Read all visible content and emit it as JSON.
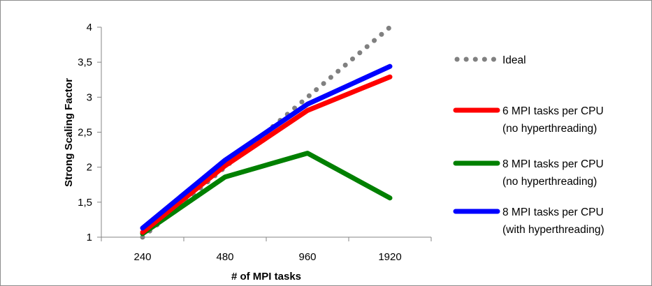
{
  "chart_data": {
    "type": "line",
    "title": "",
    "xlabel": "# of MPI tasks",
    "ylabel": "Strong Scaling Factor",
    "categories": [
      "240",
      "480",
      "960",
      "1920"
    ],
    "y_ticks": [
      "1",
      "1,5",
      "2",
      "2,5",
      "3",
      "3,5",
      "4"
    ],
    "ylim": [
      1,
      4
    ],
    "grid": false,
    "legend_position": "right",
    "series": [
      {
        "name": "Ideal",
        "values": [
          1,
          2,
          3,
          4
        ],
        "color": "#808080",
        "style": "dotted"
      },
      {
        "name": "6 MPI tasks per CPU",
        "name_line2": "(no hyperthreading)",
        "values": [
          1.07,
          2.02,
          2.81,
          3.29
        ],
        "color": "#ff0000",
        "style": "solid"
      },
      {
        "name": "8 MPI tasks per CPU",
        "name_line2": "(no hyperthreading)",
        "values": [
          1.05,
          1.86,
          2.2,
          1.56
        ],
        "color": "#008000",
        "style": "solid"
      },
      {
        "name": "8 MPI tasks per CPU",
        "name_line2": "(with hyperthreading)",
        "values": [
          1.13,
          2.1,
          2.9,
          3.44
        ],
        "color": "#0000ff",
        "style": "solid"
      }
    ]
  }
}
